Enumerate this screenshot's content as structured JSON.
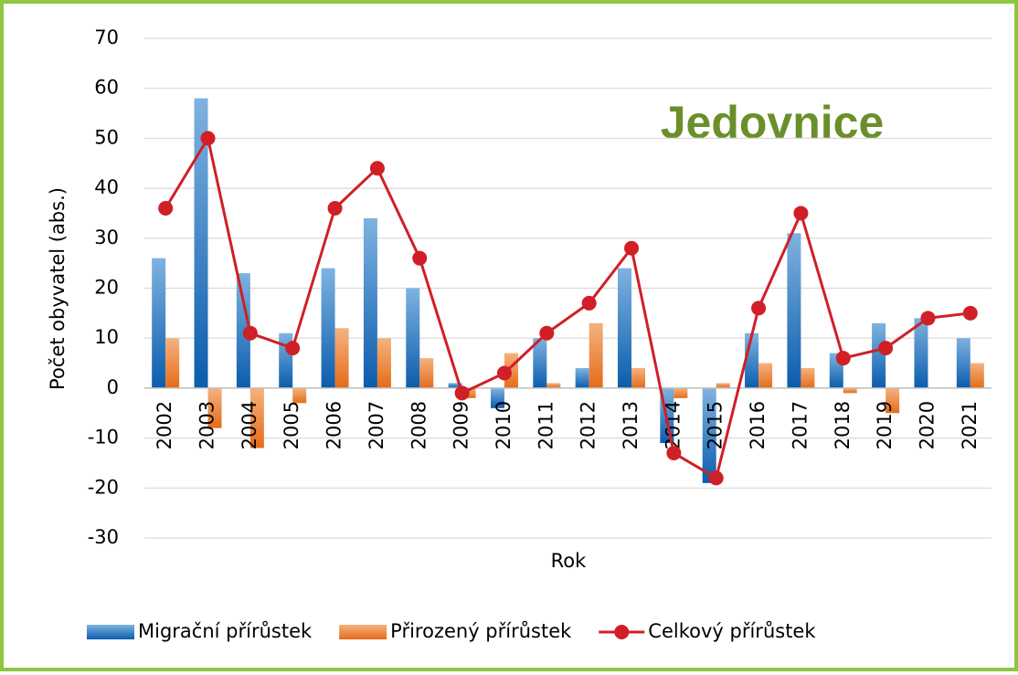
{
  "chart_data": {
    "type": "bar",
    "title": "Jedovnice",
    "ylabel": "Počet obyvatel (abs.)",
    "xlabel": "Rok",
    "categories": [
      "2002",
      "2003",
      "2004",
      "2005",
      "2006",
      "2007",
      "2008",
      "2009",
      "2010",
      "2011",
      "2012",
      "2013",
      "2014",
      "2015",
      "2016",
      "2017",
      "2018",
      "2019",
      "2020",
      "2021"
    ],
    "series": [
      {
        "name": "Migrační přírůstek",
        "color": "#2e75b6",
        "type": "bar",
        "values": [
          26,
          58,
          23,
          11,
          24,
          34,
          20,
          1,
          -4,
          10,
          4,
          24,
          -11,
          -19,
          11,
          31,
          7,
          13,
          14,
          10
        ]
      },
      {
        "name": "Přirozený přírůstek",
        "color": "#ed7d31",
        "type": "bar",
        "values": [
          10,
          -8,
          -12,
          -3,
          12,
          10,
          6,
          -2,
          7,
          1,
          13,
          4,
          -2,
          1,
          5,
          4,
          -1,
          -5,
          0,
          5
        ]
      },
      {
        "name": "Celkový přírůstek",
        "color": "#d01f26",
        "type": "line",
        "values": [
          36,
          50,
          11,
          8,
          36,
          44,
          26,
          -1,
          3,
          11,
          17,
          28,
          -13,
          -18,
          16,
          35,
          6,
          8,
          14,
          15
        ]
      }
    ],
    "ylim": [
      -30,
      70
    ],
    "yticks": [
      -30,
      -20,
      -10,
      0,
      10,
      20,
      30,
      40,
      50,
      60,
      70
    ],
    "grid": true,
    "legend": "bottom"
  }
}
